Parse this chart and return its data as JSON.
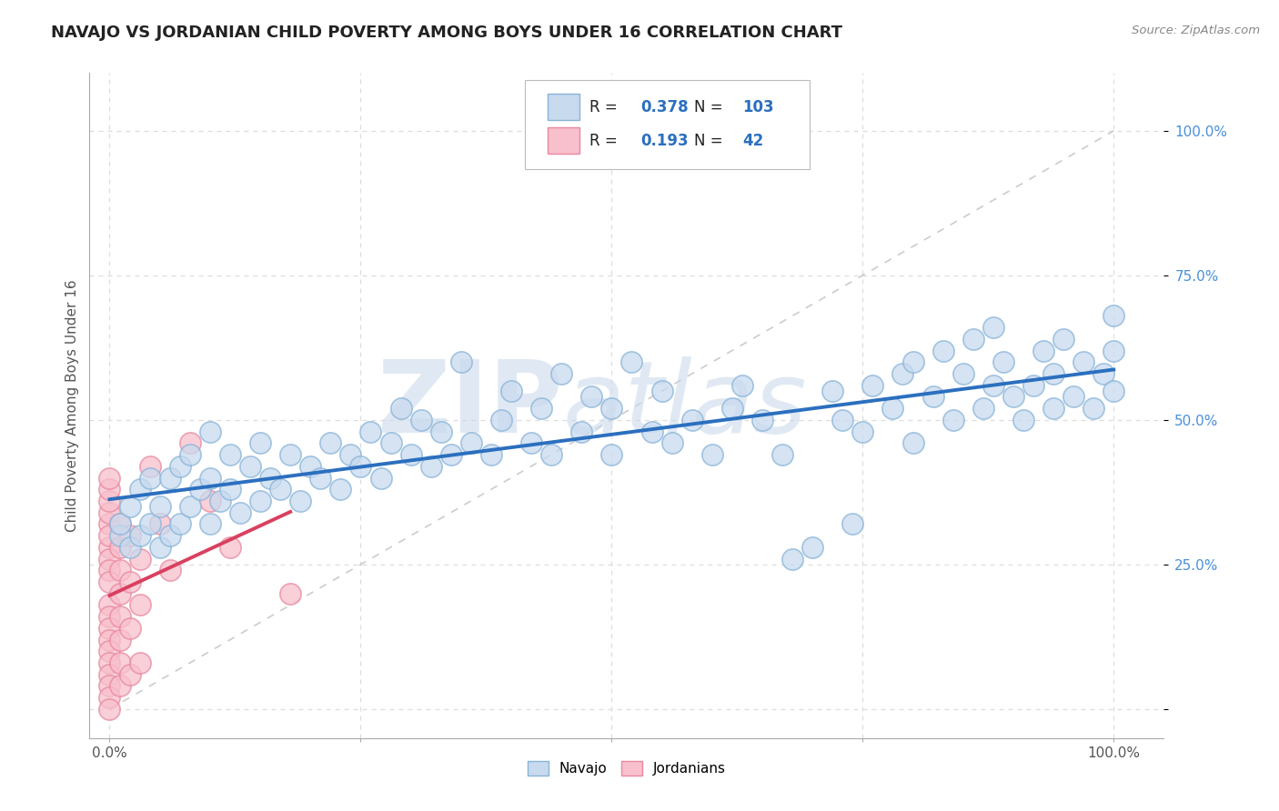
{
  "title": "NAVAJO VS JORDANIAN CHILD POVERTY AMONG BOYS UNDER 16 CORRELATION CHART",
  "source": "Source: ZipAtlas.com",
  "ylabel": "Child Poverty Among Boys Under 16",
  "watermark_zip": "ZIP",
  "watermark_atlas": "atlas",
  "navajo_R": 0.378,
  "navajo_N": 103,
  "jordanian_R": 0.193,
  "jordanian_N": 42,
  "navajo_color_fill": "#c8daee",
  "navajo_color_edge": "#89b4d9",
  "jordanian_color_fill": "#f8c0cc",
  "jordanian_color_edge": "#e888a0",
  "navajo_line_color": "#2b6fbf",
  "jordanian_line_color": "#d94060",
  "ref_line_color": "#cccccc",
  "background_color": "#ffffff",
  "grid_color": "#dddddd",
  "title_color": "#333333",
  "tick_color": "#4a90d9",
  "legend_label_navajo": "Navajo",
  "legend_label_jordanian": "Jordanians",
  "navajo_points": [
    [
      0.01,
      0.3
    ],
    [
      0.01,
      0.32
    ],
    [
      0.02,
      0.28
    ],
    [
      0.02,
      0.35
    ],
    [
      0.03,
      0.3
    ],
    [
      0.03,
      0.38
    ],
    [
      0.04,
      0.32
    ],
    [
      0.04,
      0.4
    ],
    [
      0.05,
      0.28
    ],
    [
      0.05,
      0.35
    ],
    [
      0.06,
      0.3
    ],
    [
      0.06,
      0.4
    ],
    [
      0.07,
      0.32
    ],
    [
      0.07,
      0.42
    ],
    [
      0.08,
      0.35
    ],
    [
      0.08,
      0.44
    ],
    [
      0.09,
      0.38
    ],
    [
      0.1,
      0.32
    ],
    [
      0.1,
      0.4
    ],
    [
      0.1,
      0.48
    ],
    [
      0.11,
      0.36
    ],
    [
      0.12,
      0.38
    ],
    [
      0.12,
      0.44
    ],
    [
      0.13,
      0.34
    ],
    [
      0.14,
      0.42
    ],
    [
      0.15,
      0.36
    ],
    [
      0.15,
      0.46
    ],
    [
      0.16,
      0.4
    ],
    [
      0.17,
      0.38
    ],
    [
      0.18,
      0.44
    ],
    [
      0.19,
      0.36
    ],
    [
      0.2,
      0.42
    ],
    [
      0.21,
      0.4
    ],
    [
      0.22,
      0.46
    ],
    [
      0.23,
      0.38
    ],
    [
      0.24,
      0.44
    ],
    [
      0.25,
      0.42
    ],
    [
      0.26,
      0.48
    ],
    [
      0.27,
      0.4
    ],
    [
      0.28,
      0.46
    ],
    [
      0.29,
      0.52
    ],
    [
      0.3,
      0.44
    ],
    [
      0.31,
      0.5
    ],
    [
      0.32,
      0.42
    ],
    [
      0.33,
      0.48
    ],
    [
      0.34,
      0.44
    ],
    [
      0.35,
      0.6
    ],
    [
      0.36,
      0.46
    ],
    [
      0.38,
      0.44
    ],
    [
      0.39,
      0.5
    ],
    [
      0.4,
      0.55
    ],
    [
      0.42,
      0.46
    ],
    [
      0.43,
      0.52
    ],
    [
      0.44,
      0.44
    ],
    [
      0.45,
      0.58
    ],
    [
      0.47,
      0.48
    ],
    [
      0.48,
      0.54
    ],
    [
      0.5,
      0.44
    ],
    [
      0.5,
      0.52
    ],
    [
      0.52,
      0.6
    ],
    [
      0.54,
      0.48
    ],
    [
      0.55,
      0.55
    ],
    [
      0.56,
      0.46
    ],
    [
      0.58,
      0.5
    ],
    [
      0.6,
      0.44
    ],
    [
      0.62,
      0.52
    ],
    [
      0.63,
      0.56
    ],
    [
      0.65,
      0.5
    ],
    [
      0.67,
      0.44
    ],
    [
      0.68,
      0.26
    ],
    [
      0.7,
      0.28
    ],
    [
      0.72,
      0.55
    ],
    [
      0.73,
      0.5
    ],
    [
      0.74,
      0.32
    ],
    [
      0.75,
      0.48
    ],
    [
      0.76,
      0.56
    ],
    [
      0.78,
      0.52
    ],
    [
      0.79,
      0.58
    ],
    [
      0.8,
      0.46
    ],
    [
      0.8,
      0.6
    ],
    [
      0.82,
      0.54
    ],
    [
      0.83,
      0.62
    ],
    [
      0.84,
      0.5
    ],
    [
      0.85,
      0.58
    ],
    [
      0.86,
      0.64
    ],
    [
      0.87,
      0.52
    ],
    [
      0.88,
      0.56
    ],
    [
      0.88,
      0.66
    ],
    [
      0.89,
      0.6
    ],
    [
      0.9,
      0.54
    ],
    [
      0.91,
      0.5
    ],
    [
      0.92,
      0.56
    ],
    [
      0.93,
      0.62
    ],
    [
      0.94,
      0.52
    ],
    [
      0.94,
      0.58
    ],
    [
      0.95,
      0.64
    ],
    [
      0.96,
      0.54
    ],
    [
      0.97,
      0.6
    ],
    [
      0.98,
      0.52
    ],
    [
      0.99,
      0.58
    ],
    [
      1.0,
      0.55
    ],
    [
      1.0,
      0.62
    ],
    [
      1.0,
      0.68
    ]
  ],
  "jordanian_points": [
    [
      0.0,
      0.32
    ],
    [
      0.0,
      0.34
    ],
    [
      0.0,
      0.36
    ],
    [
      0.0,
      0.38
    ],
    [
      0.0,
      0.28
    ],
    [
      0.0,
      0.3
    ],
    [
      0.0,
      0.26
    ],
    [
      0.0,
      0.24
    ],
    [
      0.0,
      0.22
    ],
    [
      0.0,
      0.4
    ],
    [
      0.0,
      0.18
    ],
    [
      0.0,
      0.16
    ],
    [
      0.0,
      0.14
    ],
    [
      0.0,
      0.12
    ],
    [
      0.0,
      0.1
    ],
    [
      0.0,
      0.08
    ],
    [
      0.0,
      0.06
    ],
    [
      0.0,
      0.04
    ],
    [
      0.0,
      0.02
    ],
    [
      0.0,
      0.0
    ],
    [
      0.01,
      0.32
    ],
    [
      0.01,
      0.28
    ],
    [
      0.01,
      0.24
    ],
    [
      0.01,
      0.2
    ],
    [
      0.01,
      0.16
    ],
    [
      0.01,
      0.12
    ],
    [
      0.01,
      0.08
    ],
    [
      0.01,
      0.04
    ],
    [
      0.02,
      0.3
    ],
    [
      0.02,
      0.22
    ],
    [
      0.02,
      0.14
    ],
    [
      0.02,
      0.06
    ],
    [
      0.03,
      0.26
    ],
    [
      0.03,
      0.18
    ],
    [
      0.03,
      0.08
    ],
    [
      0.04,
      0.42
    ],
    [
      0.05,
      0.32
    ],
    [
      0.06,
      0.24
    ],
    [
      0.08,
      0.46
    ],
    [
      0.1,
      0.36
    ],
    [
      0.12,
      0.28
    ],
    [
      0.18,
      0.2
    ]
  ]
}
